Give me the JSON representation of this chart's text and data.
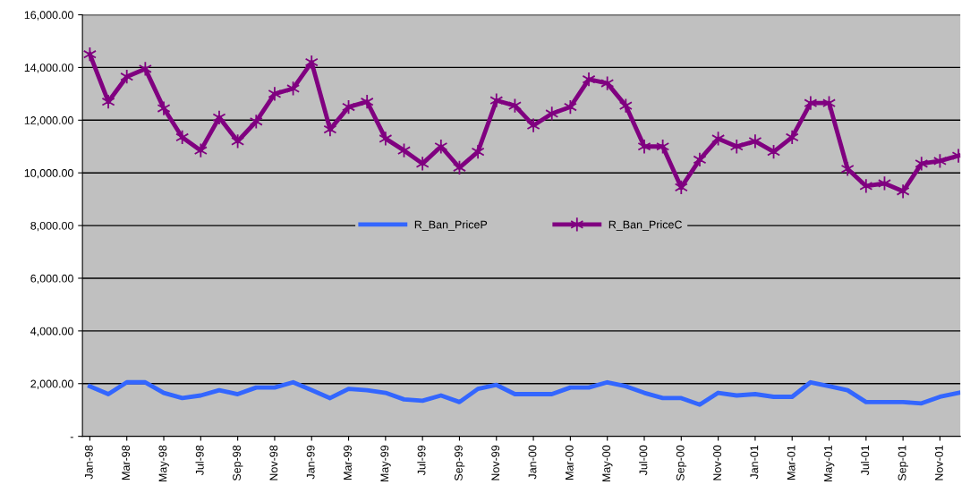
{
  "chart_data": {
    "type": "line",
    "categories": [
      "Jan-98",
      null,
      "Mar-98",
      null,
      "May-98",
      null,
      "Jul-98",
      null,
      "Sep-98",
      null,
      "Nov-98",
      null,
      "Jan-99",
      null,
      "Mar-99",
      null,
      "May-99",
      null,
      "Jul-99",
      null,
      "Sep-99",
      null,
      "Nov-99",
      null,
      "Jan-00",
      null,
      "Mar-00",
      null,
      "May-00",
      null,
      "Jul-00",
      null,
      "Sep-00",
      null,
      "Nov-00",
      null,
      "Jan-01",
      null,
      "Mar-01",
      null,
      "May-01",
      null,
      "Jul-01",
      null,
      "Sep-01",
      null,
      "Nov-01",
      null
    ],
    "series": [
      {
        "name": "R_Ban_PriceP",
        "color": "#3366ff",
        "marker": "none",
        "values": [
          1900,
          1600,
          2050,
          2050,
          1650,
          1450,
          1550,
          1750,
          1600,
          1850,
          1850,
          2050,
          1750,
          1450,
          1800,
          1750,
          1650,
          1400,
          1350,
          1550,
          1300,
          1800,
          1950,
          1600,
          1600,
          1600,
          1850,
          1850,
          2050,
          1900,
          1650,
          1450,
          1450,
          1200,
          1650,
          1550,
          1600,
          1500,
          1500,
          2050,
          1900,
          1750,
          1300,
          1300,
          1300,
          1250,
          1500,
          1650
        ]
      },
      {
        "name": "R_Ban_PriceC",
        "color": "#800080",
        "marker": "cross",
        "values": [
          14500,
          12700,
          13650,
          13950,
          12450,
          11350,
          10850,
          12100,
          11200,
          11950,
          13000,
          13200,
          14200,
          11650,
          12500,
          12700,
          11300,
          10850,
          10350,
          11000,
          10200,
          10800,
          12750,
          12550,
          11800,
          12250,
          12500,
          13550,
          13400,
          12550,
          11000,
          11000,
          9450,
          10500,
          11300,
          11000,
          11200,
          10800,
          11350,
          12650,
          12650,
          10150,
          9500,
          9600,
          9300,
          10350,
          10450,
          10650
        ]
      }
    ],
    "ylim": [
      0,
      16000
    ],
    "yticks": [
      {
        "value": 0,
        "label": "-"
      },
      {
        "value": 2000,
        "label": "2,000.00"
      },
      {
        "value": 4000,
        "label": "4,000.00"
      },
      {
        "value": 6000,
        "label": "6,000.00"
      },
      {
        "value": 8000,
        "label": "8,000.00"
      },
      {
        "value": 10000,
        "label": "10,000.00"
      },
      {
        "value": 12000,
        "label": "12,000.00"
      },
      {
        "value": 14000,
        "label": "14,000.00"
      },
      {
        "value": 16000,
        "label": "16,000.00"
      }
    ],
    "grid": "y",
    "legend": "center",
    "line_style": "solid"
  }
}
